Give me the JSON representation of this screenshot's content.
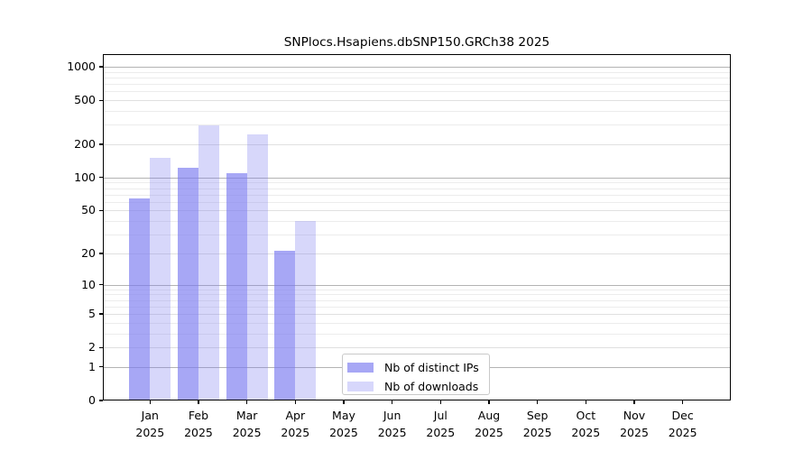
{
  "title": "SNPlocs.Hsapiens.dbSNP150.GRCh38 2025",
  "chart_data": {
    "type": "bar",
    "categories": [
      {
        "month": "Jan",
        "year": "2025"
      },
      {
        "month": "Feb",
        "year": "2025"
      },
      {
        "month": "Mar",
        "year": "2025"
      },
      {
        "month": "Apr",
        "year": "2025"
      },
      {
        "month": "May",
        "year": "2025"
      },
      {
        "month": "Jun",
        "year": "2025"
      },
      {
        "month": "Jul",
        "year": "2025"
      },
      {
        "month": "Aug",
        "year": "2025"
      },
      {
        "month": "Sep",
        "year": "2025"
      },
      {
        "month": "Oct",
        "year": "2025"
      },
      {
        "month": "Nov",
        "year": "2025"
      },
      {
        "month": "Dec",
        "year": "2025"
      }
    ],
    "series": [
      {
        "name": "Nb of distinct IPs",
        "bar_color": "rgba(121,121,240,0.66)",
        "swatch_color": "#a7a7f5",
        "values": [
          65,
          123,
          110,
          21,
          null,
          null,
          null,
          null,
          null,
          null,
          null,
          null
        ]
      },
      {
        "name": "Nb of downloads",
        "bar_color": "rgba(121,121,240,0.30)",
        "swatch_color": "#d7d7fb",
        "values": [
          152,
          297,
          244,
          40,
          null,
          null,
          null,
          null,
          null,
          null,
          null,
          null
        ]
      }
    ],
    "title": "SNPlocs.Hsapiens.dbSNP150.GRCh38 2025",
    "xlabel": "",
    "ylabel": "",
    "yscale": "log1p",
    "ylim": [
      0,
      1300
    ],
    "yticks": [
      0,
      1,
      2,
      5,
      10,
      20,
      50,
      100,
      200,
      500,
      1000
    ],
    "grid": "horizontal",
    "legend_position": "inside-bottom-center"
  }
}
